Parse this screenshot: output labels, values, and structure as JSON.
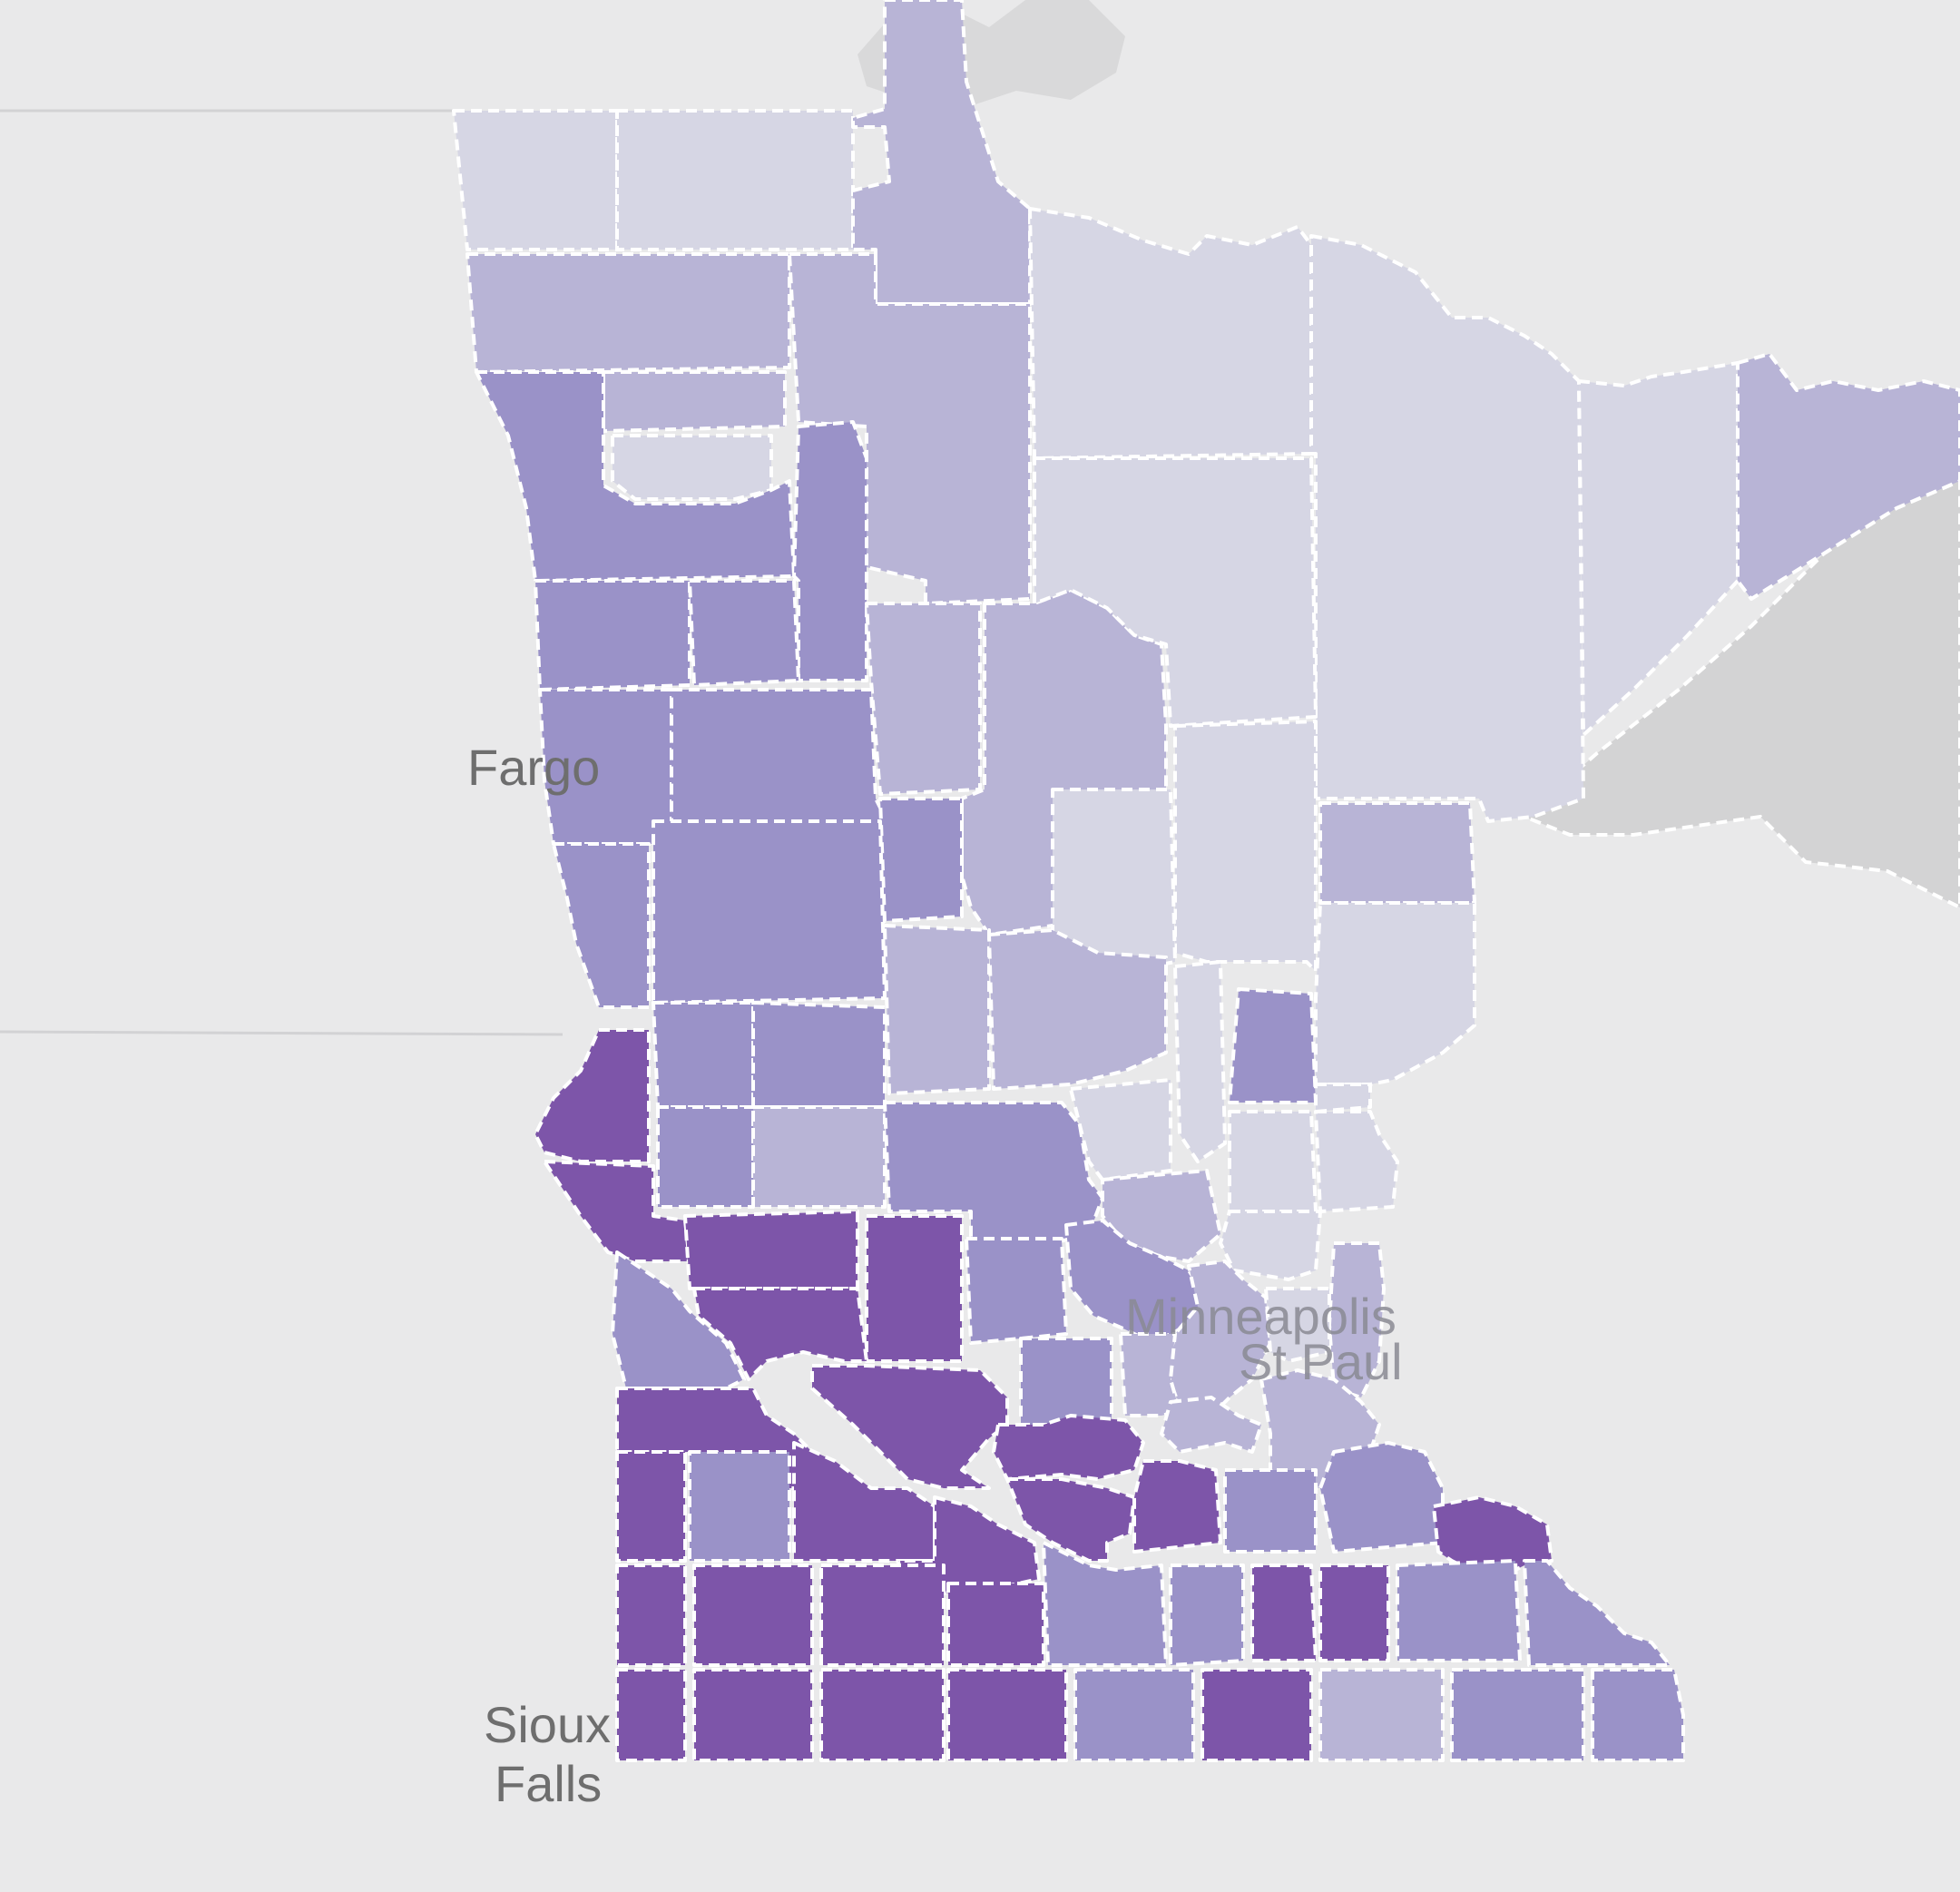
{
  "map": {
    "region": "Minnesota counties choropleth",
    "colors": {
      "background": "#e9e9ea",
      "water": "#d3d3d4",
      "level_1": "#d6d6e4",
      "level_2": "#b8b4d6",
      "level_3": "#9a92c8",
      "level_4": "#8a7fbf",
      "level_5": "#7d55a9"
    }
  },
  "labels": {
    "fargo": "Fargo",
    "minneapolis": "Minneapolis",
    "st_paul": "St Paul",
    "sioux_1": "Sioux",
    "sioux_2": "Falls"
  }
}
